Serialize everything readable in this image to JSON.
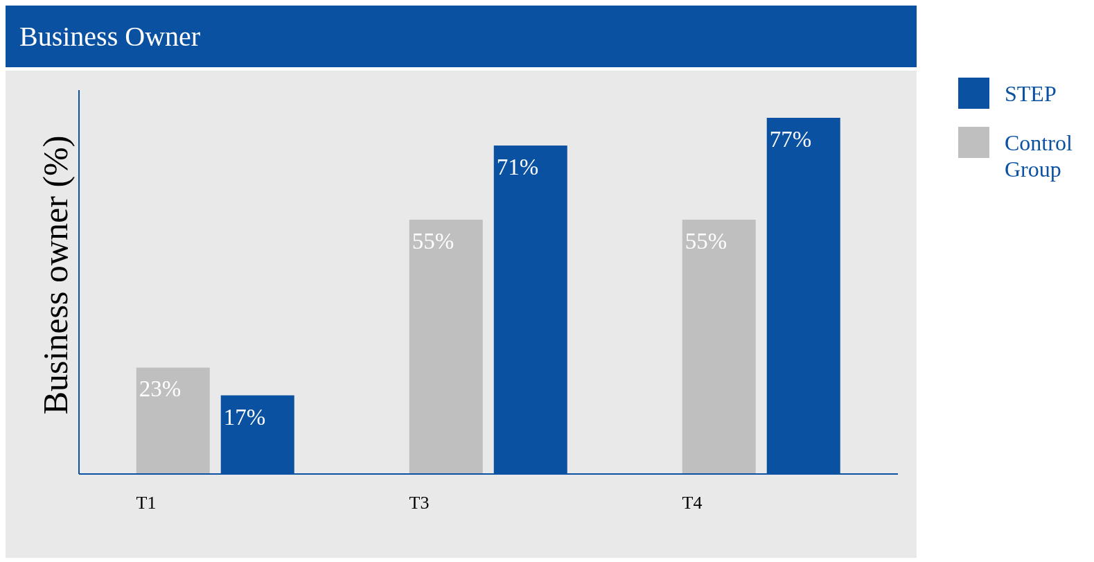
{
  "chart_data": {
    "type": "bar",
    "title": "Business Owner",
    "ylabel": "Business owner (%)",
    "categories": [
      "T1",
      "T3",
      "T4"
    ],
    "series": [
      {
        "name": "Control Group",
        "color": "#bfbfbf",
        "values": [
          23,
          55,
          55
        ],
        "value_labels": [
          "23%",
          "55%",
          "55%"
        ]
      },
      {
        "name": "STEP",
        "color": "#0a52a1",
        "values": [
          17,
          71,
          77
        ],
        "value_labels": [
          "17%",
          "71%",
          "77%"
        ]
      }
    ],
    "ylim": [
      0,
      83
    ],
    "tick_labels": "x",
    "legend": "top right",
    "grid": false
  }
}
